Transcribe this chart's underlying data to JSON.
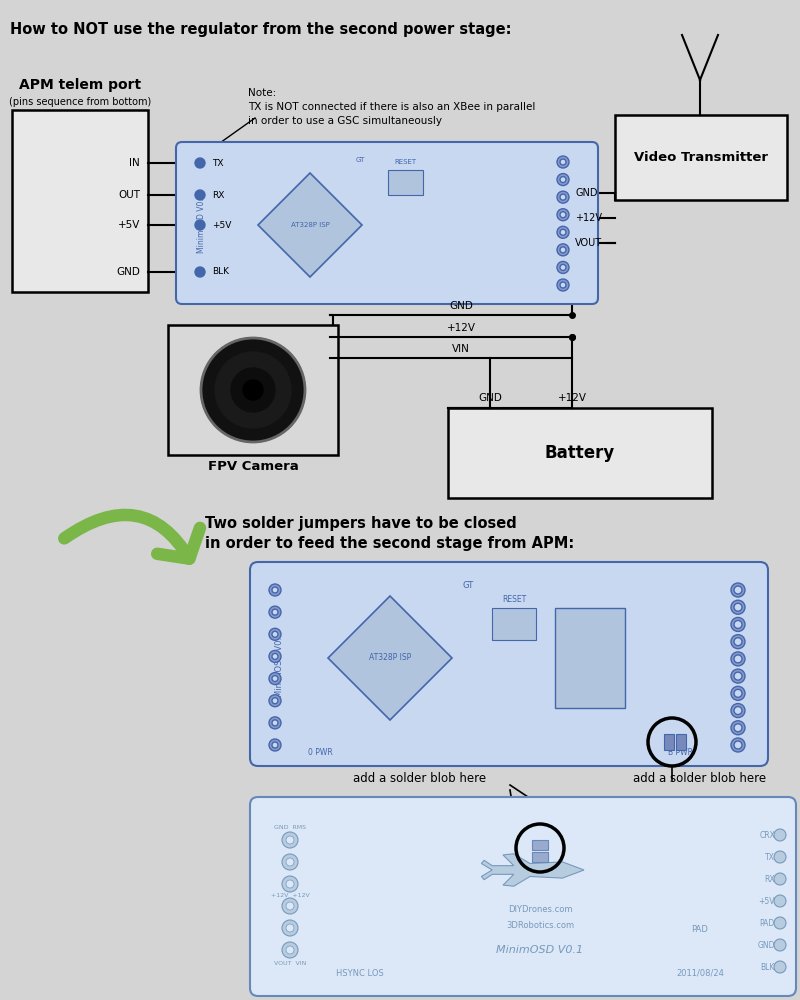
{
  "bg_color": "#d4d4d4",
  "title": "How to NOT use the regulator from the second power stage:",
  "note_text": "Note:\nTX is NOT connected if there is also an XBee in parallel\nin order to use a GSC simultaneously",
  "bottom_text1": "Two solder jumpers have to be closed",
  "bottom_text2": "in order to feed the second stage from APM:",
  "solder_text1": "add a solder blob here",
  "solder_text2": "add a solder blob here",
  "green_arrow_color": "#7ab648",
  "osd_color": "#c8d8f0",
  "osd_edge": "#4466aa",
  "board2_color": "#dce8f8",
  "board2_edge": "#6688bb",
  "wire_color": "#000000",
  "box_color": "#e8e8e8"
}
